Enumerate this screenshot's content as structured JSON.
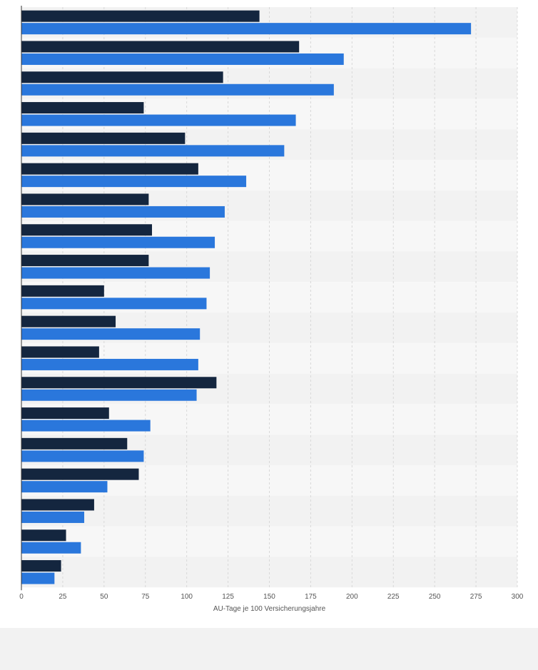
{
  "chart_data": {
    "type": "bar",
    "orientation": "horizontal",
    "xlabel": "AU-Tage je 100 Versicherungsjahre",
    "xlim": [
      0,
      300
    ],
    "xticks": [
      0,
      25,
      50,
      75,
      100,
      125,
      150,
      175,
      200,
      225,
      250,
      275,
      300
    ],
    "grid": true,
    "legend": "none",
    "categories": [
      "",
      "",
      "",
      "",
      "",
      "",
      "",
      "",
      "",
      "",
      "",
      "",
      "",
      "",
      "",
      "",
      "",
      "",
      ""
    ],
    "series": [
      {
        "color": "#14263f",
        "values": [
          144,
          168,
          122,
          74,
          99,
          107,
          77,
          79,
          77,
          50,
          57,
          47,
          118,
          53,
          64,
          71,
          44,
          27,
          24
        ]
      },
      {
        "color": "#2a77dc",
        "values": [
          272,
          195,
          189,
          166,
          159,
          136,
          123,
          117,
          114,
          112,
          108,
          107,
          106,
          78,
          74,
          52,
          38,
          36,
          20
        ]
      }
    ]
  }
}
